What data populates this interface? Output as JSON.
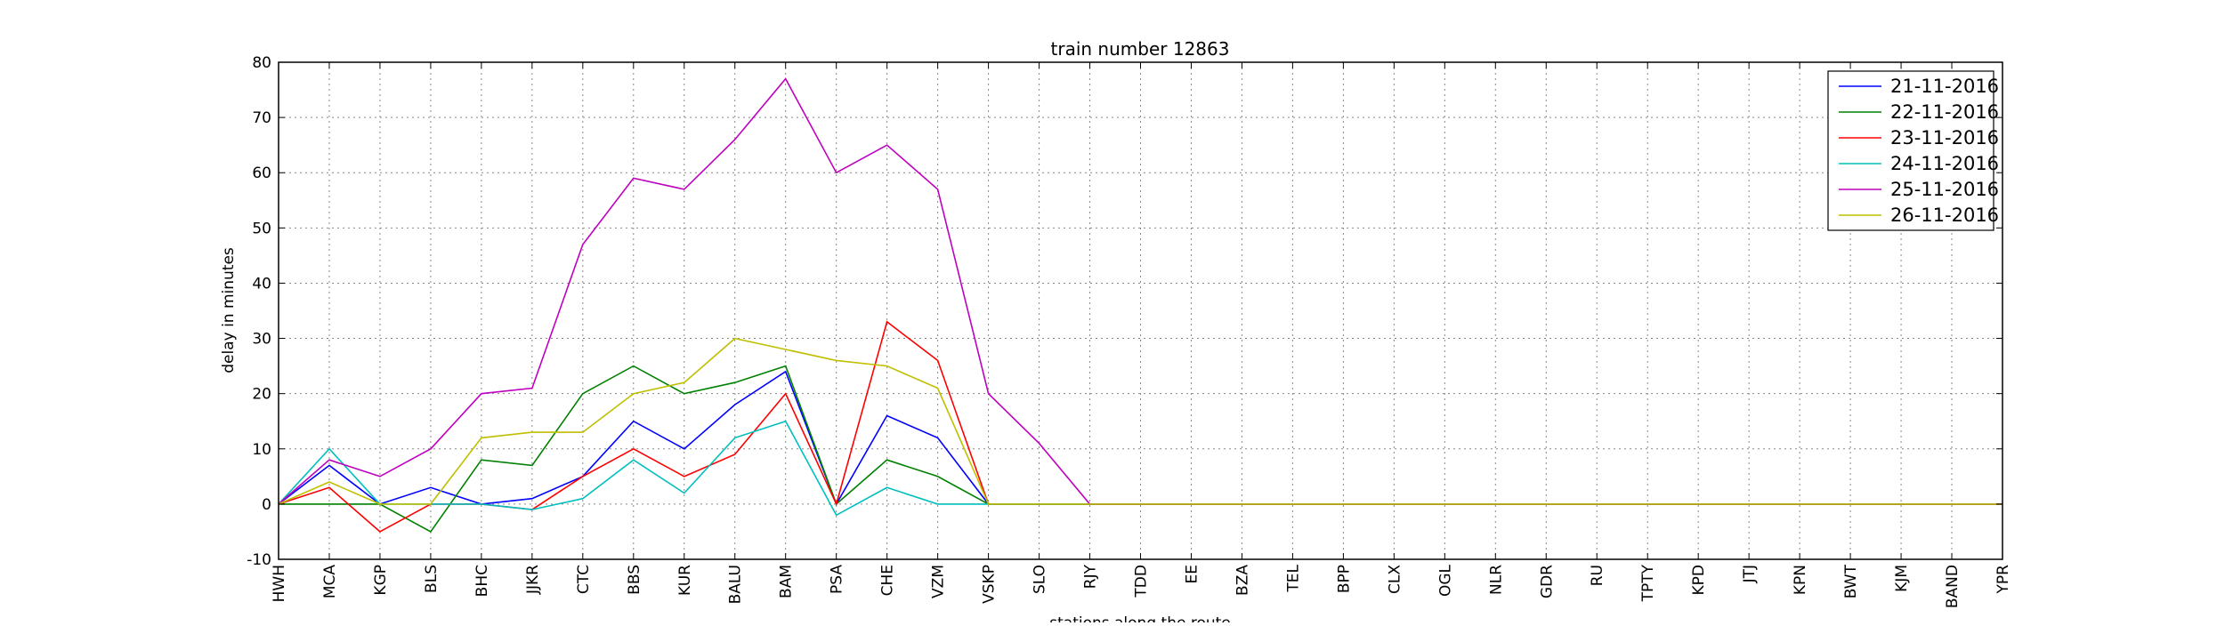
{
  "chart_data": {
    "type": "line",
    "title": "train number 12863",
    "xlabel": "stations along the route",
    "ylabel": "delay in minutes",
    "ylim": [
      -10,
      80
    ],
    "yticks": [
      -10,
      0,
      10,
      20,
      30,
      40,
      50,
      60,
      70,
      80
    ],
    "grid": true,
    "legend_position": "top-right",
    "categories": [
      "HWH",
      "MCA",
      "KGP",
      "BLS",
      "BHC",
      "JJKR",
      "CTC",
      "BBS",
      "KUR",
      "BALU",
      "BAM",
      "PSA",
      "CHE",
      "VZM",
      "VSKP",
      "SLO",
      "RJY",
      "TDD",
      "EE",
      "BZA",
      "TEL",
      "BPP",
      "CLX",
      "OGL",
      "NLR",
      "GDR",
      "RU",
      "TPTY",
      "KPD",
      "JTJ",
      "KPN",
      "BWT",
      "KJM",
      "BAND",
      "YPR"
    ],
    "series": [
      {
        "name": "21-11-2016",
        "color": "#0000ff",
        "values": [
          0,
          7,
          0,
          3,
          0,
          1,
          5,
          15,
          10,
          18,
          24,
          0,
          16,
          12,
          0,
          0,
          0,
          0,
          0,
          0,
          0,
          0,
          0,
          0,
          0,
          0,
          0,
          0,
          0,
          0,
          0,
          0,
          0,
          0,
          0
        ]
      },
      {
        "name": "22-11-2016",
        "color": "#008000",
        "values": [
          0,
          0,
          0,
          -5,
          8,
          7,
          20,
          25,
          20,
          22,
          25,
          0,
          8,
          5,
          0,
          0,
          0,
          0,
          0,
          0,
          0,
          0,
          0,
          0,
          0,
          0,
          0,
          0,
          0,
          0,
          0,
          0,
          0,
          0,
          0
        ]
      },
      {
        "name": "23-11-2016",
        "color": "#ff0000",
        "values": [
          0,
          3,
          -5,
          0,
          0,
          -1,
          5,
          10,
          5,
          9,
          20,
          0,
          33,
          26,
          0,
          0,
          0,
          0,
          0,
          0,
          0,
          0,
          0,
          0,
          0,
          0,
          0,
          0,
          0,
          0,
          0,
          0,
          0,
          0,
          0
        ]
      },
      {
        "name": "24-11-2016",
        "color": "#00bfbf",
        "values": [
          0,
          10,
          0,
          0,
          0,
          -1,
          1,
          8,
          2,
          12,
          15,
          -2,
          3,
          0,
          0,
          0,
          0,
          0,
          0,
          0,
          0,
          0,
          0,
          0,
          0,
          0,
          0,
          0,
          0,
          0,
          0,
          0,
          0,
          0,
          0
        ]
      },
      {
        "name": "25-11-2016",
        "color": "#bf00bf",
        "values": [
          0,
          8,
          5,
          10,
          20,
          21,
          47,
          59,
          57,
          66,
          77,
          60,
          65,
          57,
          20,
          11,
          0,
          0,
          0,
          0,
          0,
          0,
          0,
          0,
          0,
          0,
          0,
          0,
          0,
          0,
          0,
          0,
          0,
          0,
          0
        ]
      },
      {
        "name": "26-11-2016",
        "color": "#bfbf00",
        "values": [
          0,
          4,
          0,
          0,
          12,
          13,
          13,
          20,
          22,
          30,
          28,
          26,
          25,
          21,
          0,
          0,
          0,
          0,
          0,
          0,
          0,
          0,
          0,
          0,
          0,
          0,
          0,
          0,
          0,
          0,
          0,
          0,
          0,
          0,
          0
        ]
      }
    ]
  }
}
